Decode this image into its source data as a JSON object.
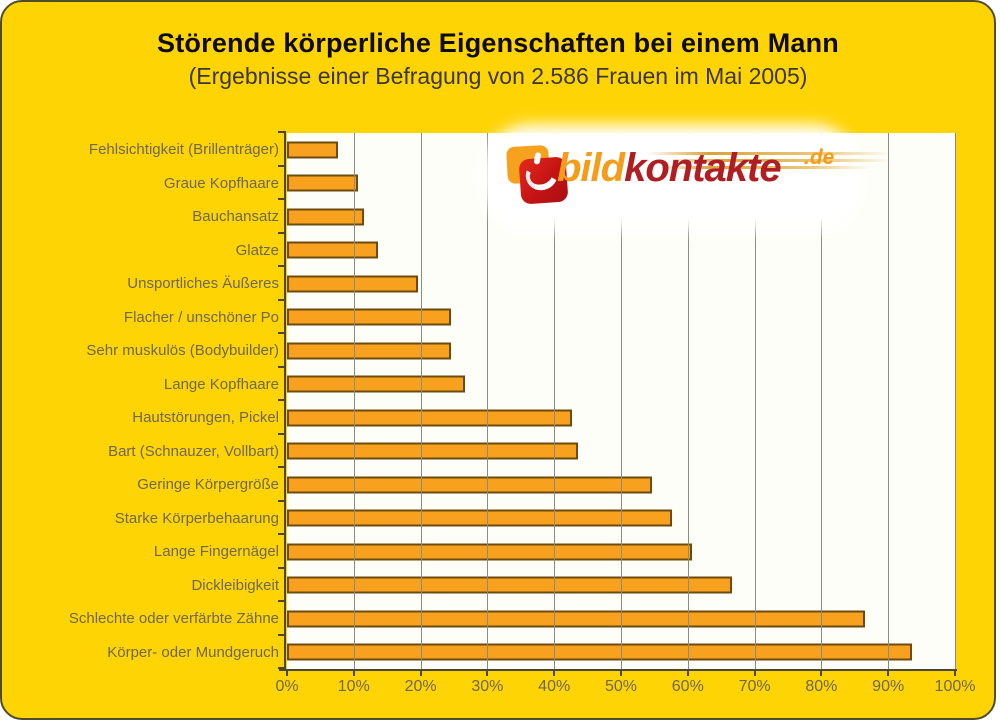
{
  "card": {
    "background": "#FFD405",
    "border_color": "#514C28"
  },
  "header": {
    "title": "Störende körperliche Eigenschaften bei einem Mann",
    "subtitle": "(Ergebnisse einer Befragung von 2.586 Frauen im Mai 2005)"
  },
  "logo": {
    "word1": "bild",
    "word2": "kontakte",
    "tld": ".de"
  },
  "chart_data": {
    "type": "bar",
    "orientation": "horizontal",
    "title": "Störende körperliche Eigenschaften bei einem Mann",
    "subtitle": "(Ergebnisse einer Befragung von 2.586 Frauen im Mai 2005)",
    "categories": [
      "Fehlsichtigkeit (Brillenträger)",
      "Graue Kopfhaare",
      "Bauchansatz",
      "Glatze",
      "Unsportliches Äußeres",
      "Flacher / unschöner Po",
      "Sehr muskulös (Bodybuilder)",
      "Lange Kopfhaare",
      "Hautstörungen, Pickel",
      "Bart (Schnauzer, Vollbart)",
      "Geringe Körpergröße",
      "Starke Körperbehaarung",
      "Lange Fingernägel",
      "Dickleibigkeit",
      "Schlechte oder verfärbte Zähne",
      "Körper- oder Mundgeruch"
    ],
    "values": [
      7,
      10,
      11,
      13,
      19,
      24,
      24,
      26,
      42,
      43,
      54,
      57,
      60,
      66,
      86,
      93
    ],
    "unit": "%",
    "xlim": [
      0,
      100
    ],
    "x_ticks": [
      "0%",
      "10%",
      "20%",
      "30%",
      "40%",
      "50%",
      "60%",
      "70%",
      "80%",
      "90%",
      "100%"
    ],
    "grid": true,
    "legend": false,
    "bar_color": "#F7A11E",
    "bar_border_color": "#6D4A0D",
    "plot_background": "#FEFEF9",
    "gridline_color": "#8B8B80",
    "axis_color": "#4C4639",
    "label_color": "#6F6852"
  }
}
